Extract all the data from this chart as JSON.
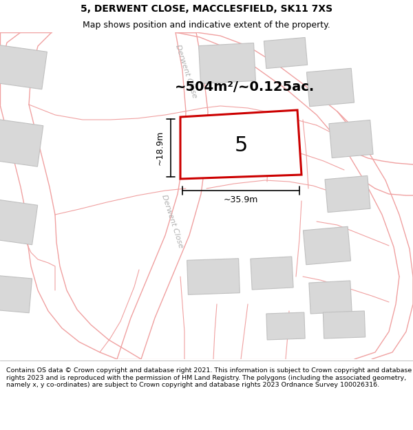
{
  "title": "5, DERWENT CLOSE, MACCLESFIELD, SK11 7XS",
  "subtitle": "Map shows position and indicative extent of the property.",
  "footer": "Contains OS data © Crown copyright and database right 2021. This information is subject to Crown copyright and database rights 2023 and is reproduced with the permission of HM Land Registry. The polygons (including the associated geometry, namely x, y co-ordinates) are subject to Crown copyright and database rights 2023 Ordnance Survey 100026316.",
  "map_bg": "#ffffff",
  "road_line_color": "#f0a0a0",
  "building_fill": "#d8d8d8",
  "building_edge": "#c0c0c0",
  "highlight_fill": "#ffffff",
  "highlight_edge": "#cc0000",
  "street_label": "Derwent Close",
  "area_label": "~504m²/~0.125ac.",
  "property_number": "5",
  "dim_width": "~35.9m",
  "dim_height": "~18.9m",
  "title_fontsize": 10,
  "subtitle_fontsize": 9,
  "footer_fontsize": 6.8
}
